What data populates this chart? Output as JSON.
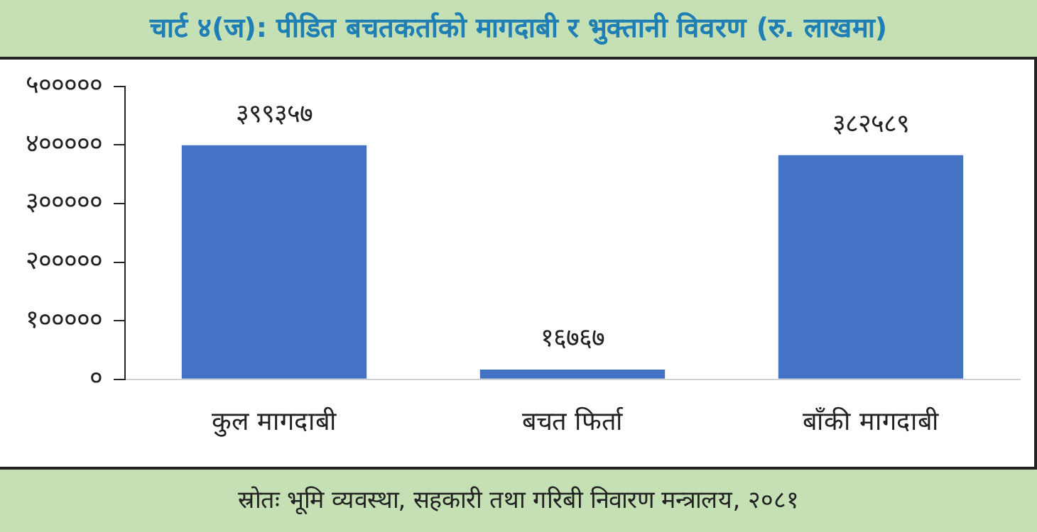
{
  "chart_data": {
    "type": "bar",
    "title": "चार्ट ४(ज): पीडित बचतकर्ताको मागदाबी र भुक्तानी विवरण (रु. लाखमा)",
    "categories": [
      "कुल मागदाबी",
      "बचत फिर्ता",
      "बाँकी मागदाबी"
    ],
    "values": [
      399357,
      16767,
      382589
    ],
    "value_labels": [
      "३९९३५७",
      "१६७६७",
      "३८२५८९"
    ],
    "color": "#4472c4",
    "ylim": [
      0,
      500000
    ],
    "yticks": [
      {
        "value": 0,
        "label": "०"
      },
      {
        "value": 100000,
        "label": "१०००००"
      },
      {
        "value": 200000,
        "label": "२०००००"
      },
      {
        "value": 300000,
        "label": "३०००००"
      },
      {
        "value": 400000,
        "label": "४०००००"
      },
      {
        "value": 500000,
        "label": "५०००००"
      }
    ],
    "grid": false,
    "legend": false,
    "annotations": [
      "स्रोतः भूमि व्यवस्था, सहकारी तथा गरिबी निवारण मन्त्रालय, २०८१"
    ]
  }
}
